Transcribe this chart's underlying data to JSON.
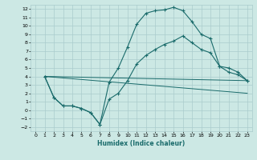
{
  "xlabel": "Humidex (Indice chaleur)",
  "xlim": [
    -0.5,
    23.5
  ],
  "ylim": [
    -2.5,
    12.5
  ],
  "xticks": [
    0,
    1,
    2,
    3,
    4,
    5,
    6,
    7,
    8,
    9,
    10,
    11,
    12,
    13,
    14,
    15,
    16,
    17,
    18,
    19,
    20,
    21,
    22,
    23
  ],
  "yticks": [
    -2,
    -1,
    0,
    1,
    2,
    3,
    4,
    5,
    6,
    7,
    8,
    9,
    10,
    11,
    12
  ],
  "bg_color": "#cce8e4",
  "grid_color": "#aacccc",
  "line_color": "#1a6b6b",
  "line1_x": [
    1,
    2,
    3,
    4,
    5,
    6,
    7,
    8,
    9,
    10,
    11,
    12,
    13,
    14,
    15,
    16,
    17,
    18,
    19,
    20,
    21,
    22,
    23
  ],
  "line1_y": [
    4,
    1.5,
    0.5,
    0.5,
    0.2,
    -0.3,
    -1.7,
    3.3,
    5.0,
    7.5,
    10.2,
    11.5,
    11.8,
    11.9,
    12.2,
    11.8,
    10.5,
    9.0,
    8.5,
    5.2,
    4.5,
    4.2,
    3.5
  ],
  "line2_x": [
    1,
    2,
    3,
    4,
    5,
    6,
    7,
    8,
    9,
    10,
    11,
    12,
    13,
    14,
    15,
    16,
    17,
    18,
    19,
    20,
    21,
    22,
    23
  ],
  "line2_y": [
    4,
    1.5,
    0.5,
    0.5,
    0.2,
    -0.3,
    -1.7,
    1.3,
    2.0,
    3.5,
    5.5,
    6.5,
    7.2,
    7.8,
    8.2,
    8.8,
    8.0,
    7.2,
    6.8,
    5.2,
    5.0,
    4.5,
    3.5
  ],
  "line3_x": [
    1,
    23
  ],
  "line3_y": [
    4,
    3.5
  ],
  "line4_x": [
    1,
    23
  ],
  "line4_y": [
    4,
    2.0
  ]
}
